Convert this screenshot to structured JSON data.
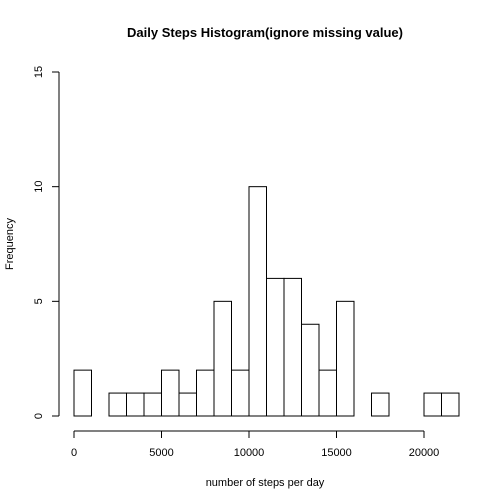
{
  "chart_data": {
    "type": "bar",
    "title": "Daily Steps Histogram(ignore missing value)",
    "xlabel": "number of steps per day",
    "ylabel": "Frequency",
    "bin_width": 1000,
    "bins": [
      {
        "start": 0,
        "end": 1000,
        "count": 2
      },
      {
        "start": 1000,
        "end": 2000,
        "count": 0
      },
      {
        "start": 2000,
        "end": 3000,
        "count": 1
      },
      {
        "start": 3000,
        "end": 4000,
        "count": 1
      },
      {
        "start": 4000,
        "end": 5000,
        "count": 1
      },
      {
        "start": 5000,
        "end": 6000,
        "count": 2
      },
      {
        "start": 6000,
        "end": 7000,
        "count": 1
      },
      {
        "start": 7000,
        "end": 8000,
        "count": 2
      },
      {
        "start": 8000,
        "end": 9000,
        "count": 5
      },
      {
        "start": 9000,
        "end": 10000,
        "count": 2
      },
      {
        "start": 10000,
        "end": 11000,
        "count": 10
      },
      {
        "start": 11000,
        "end": 12000,
        "count": 6
      },
      {
        "start": 12000,
        "end": 13000,
        "count": 6
      },
      {
        "start": 13000,
        "end": 14000,
        "count": 4
      },
      {
        "start": 14000,
        "end": 15000,
        "count": 2
      },
      {
        "start": 15000,
        "end": 16000,
        "count": 5
      },
      {
        "start": 16000,
        "end": 17000,
        "count": 0
      },
      {
        "start": 17000,
        "end": 18000,
        "count": 1
      },
      {
        "start": 18000,
        "end": 19000,
        "count": 0
      },
      {
        "start": 19000,
        "end": 20000,
        "count": 0
      },
      {
        "start": 20000,
        "end": 21000,
        "count": 1
      },
      {
        "start": 21000,
        "end": 22000,
        "count": 1
      }
    ],
    "xlim": [
      0,
      22000
    ],
    "ylim": [
      0,
      15
    ],
    "x_ticks": [
      0,
      5000,
      10000,
      15000,
      20000
    ],
    "x_tick_labels": [
      "0",
      "5000",
      "10000",
      "15000",
      "20000"
    ],
    "y_ticks": [
      0,
      5,
      10,
      15
    ],
    "y_tick_labels": [
      "0",
      "5",
      "10",
      "15"
    ],
    "grid": false,
    "legend": "none"
  }
}
